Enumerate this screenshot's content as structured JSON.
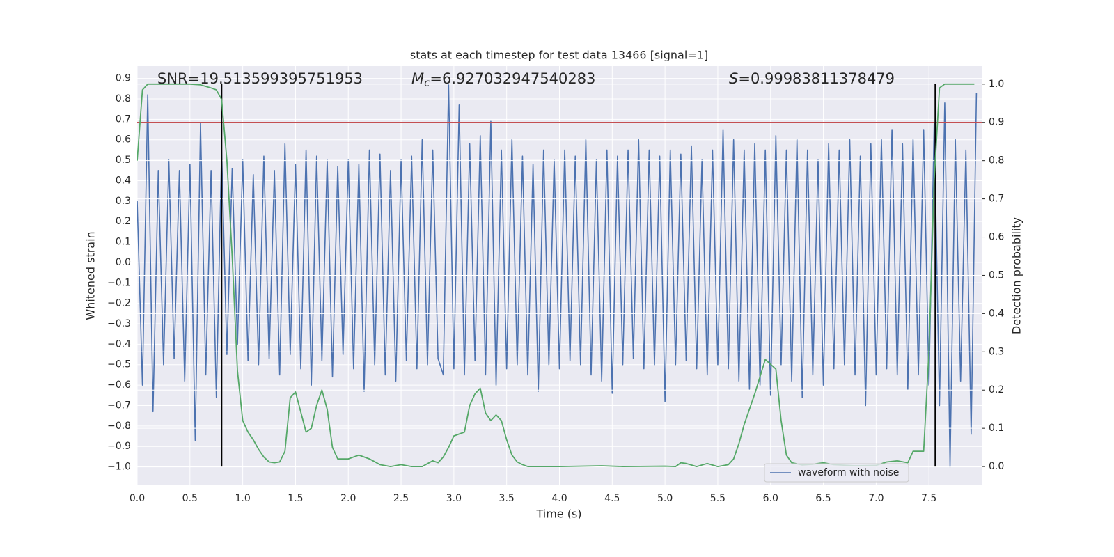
{
  "chart_data": {
    "type": "line",
    "title": "stats at each timestep for test data 13466 [signal=1]",
    "x_label": "Time (s)",
    "y_label": "Whitened strain",
    "y2_label": "Detection probability",
    "xlim": [
      0,
      8
    ],
    "ylim": [
      -1.09,
      0.96
    ],
    "y2lim": [
      -0.049,
      1.047
    ],
    "xticks": [
      {
        "value": 0,
        "label": "0.0"
      },
      0.5,
      {
        "value": 1,
        "label": "1.0"
      },
      1.5,
      {
        "value": 2,
        "label": "2.0"
      },
      2.5,
      {
        "value": 3,
        "label": "3.0"
      },
      3.5,
      {
        "value": 4,
        "label": "4.0"
      },
      4.5,
      {
        "value": 5,
        "label": "5.0"
      },
      5.5,
      {
        "value": 6,
        "label": "6.0"
      },
      6.5,
      {
        "value": 7,
        "label": "7.0"
      },
      7.5
    ],
    "yticks": [
      {
        "value": -1,
        "label": "−1.0"
      },
      {
        "value": -0.9,
        "label": "−0.9"
      },
      {
        "value": -0.8,
        "label": "−0.8"
      },
      {
        "value": -0.7,
        "label": "−0.7"
      },
      {
        "value": -0.6,
        "label": "−0.6"
      },
      {
        "value": -0.5,
        "label": "−0.5"
      },
      {
        "value": -0.4,
        "label": "−0.4"
      },
      {
        "value": -0.3,
        "label": "−0.3"
      },
      {
        "value": -0.2,
        "label": "−0.2"
      },
      {
        "value": -0.1,
        "label": "−0.1"
      },
      {
        "value": 0,
        "label": "0.0"
      },
      0.1,
      0.2,
      0.3,
      0.4,
      0.5,
      0.6,
      0.7,
      0.8,
      0.9
    ],
    "y2ticks": [
      {
        "value": 0,
        "label": "0.0"
      },
      0.1,
      0.2,
      0.3,
      0.4,
      0.5,
      0.6,
      0.7,
      0.8,
      0.9,
      {
        "value": 1,
        "label": "1.0"
      }
    ],
    "grid": true,
    "legend": "lower right",
    "series": [
      {
        "name": "waveform with noise",
        "color": "#4c72b0",
        "x": [
          0,
          0.05,
          0.1,
          0.15,
          0.2,
          0.25,
          0.3,
          0.35,
          0.4,
          0.45,
          0.5,
          0.55,
          0.6,
          0.65,
          0.7,
          0.75,
          0.8,
          0.85,
          0.9,
          0.95,
          1,
          1.05,
          1.1,
          1.15,
          1.2,
          1.25,
          1.3,
          1.35,
          1.4,
          1.45,
          1.5,
          1.55,
          1.6,
          1.65,
          1.7,
          1.75,
          1.8,
          1.85,
          1.9,
          1.95,
          2,
          2.05,
          2.1,
          2.15,
          2.2,
          2.25,
          2.3,
          2.35,
          2.4,
          2.45,
          2.5,
          2.55,
          2.6,
          2.65,
          2.7,
          2.75,
          2.8,
          2.85,
          2.9,
          2.95,
          3,
          3.05,
          3.1,
          3.15,
          3.2,
          3.25,
          3.3,
          3.35,
          3.4,
          3.45,
          3.5,
          3.55,
          3.6,
          3.65,
          3.7,
          3.75,
          3.8,
          3.85,
          3.9,
          3.95,
          4,
          4.05,
          4.1,
          4.15,
          4.2,
          4.25,
          4.3,
          4.35,
          4.4,
          4.45,
          4.5,
          4.55,
          4.6,
          4.65,
          4.7,
          4.75,
          4.8,
          4.85,
          4.9,
          4.95,
          5,
          5.05,
          5.1,
          5.15,
          5.2,
          5.25,
          5.3,
          5.35,
          5.4,
          5.45,
          5.5,
          5.55,
          5.6,
          5.65,
          5.7,
          5.75,
          5.8,
          5.85,
          5.9,
          5.95,
          6,
          6.05,
          6.1,
          6.15,
          6.2,
          6.25,
          6.3,
          6.35,
          6.4,
          6.45,
          6.5,
          6.55,
          6.6,
          6.65,
          6.7,
          6.75,
          6.8,
          6.85,
          6.9,
          6.95,
          7,
          7.05,
          7.1,
          7.15,
          7.2,
          7.25,
          7.3,
          7.35,
          7.4,
          7.45,
          7.5,
          7.55,
          7.6,
          7.65,
          7.7,
          7.75,
          7.8,
          7.85,
          7.9,
          7.95
        ],
        "values": [
          0.3,
          -0.6,
          0.82,
          -0.73,
          0.45,
          -0.5,
          0.5,
          -0.47,
          0.45,
          -0.58,
          0.48,
          -0.87,
          0.68,
          -0.55,
          0.45,
          -0.66,
          0.55,
          -0.45,
          0.46,
          -0.4,
          0.5,
          -0.48,
          0.43,
          -0.5,
          0.52,
          -0.47,
          0.45,
          -0.55,
          0.58,
          -0.45,
          0.48,
          -0.52,
          0.55,
          -0.6,
          0.52,
          -0.48,
          0.5,
          -0.56,
          0.47,
          -0.45,
          0.5,
          -0.52,
          0.48,
          -0.63,
          0.55,
          -0.5,
          0.53,
          -0.55,
          0.45,
          -0.58,
          0.5,
          -0.48,
          0.52,
          -0.52,
          0.6,
          -0.5,
          0.55,
          -0.47,
          -0.55,
          0.87,
          -0.52,
          0.77,
          -0.55,
          0.58,
          -0.48,
          0.62,
          -0.55,
          0.69,
          -0.6,
          0.55,
          -0.52,
          0.6,
          -0.5,
          0.52,
          -0.55,
          0.48,
          -0.63,
          0.55,
          -0.5,
          0.5,
          -0.52,
          0.55,
          -0.48,
          0.52,
          -0.5,
          0.6,
          -0.55,
          0.5,
          -0.58,
          0.55,
          -0.64,
          0.52,
          -0.5,
          0.55,
          -0.47,
          0.6,
          -0.52,
          0.55,
          -0.5,
          0.52,
          -0.68,
          0.55,
          -0.5,
          0.53,
          -0.48,
          0.57,
          -0.52,
          0.5,
          -0.55,
          0.55,
          -0.5,
          0.65,
          -0.52,
          0.6,
          -0.58,
          0.55,
          -0.62,
          0.58,
          -0.6,
          0.55,
          -0.65,
          0.62,
          -0.5,
          0.55,
          -0.58,
          0.6,
          -0.66,
          0.55,
          -0.55,
          0.5,
          -0.6,
          0.58,
          -0.52,
          0.55,
          -0.5,
          0.6,
          -0.55,
          0.52,
          -0.7,
          0.58,
          -0.55,
          0.6,
          -0.52,
          0.65,
          -0.55,
          0.58,
          -0.62,
          0.6,
          -0.55,
          0.65,
          -0.6,
          0.68,
          -0.7,
          0.78,
          -1,
          0.6,
          -0.58,
          0.55,
          -0.84,
          0.83
        ]
      },
      {
        "color": "#55a868",
        "axis": "y2",
        "x": [
          0,
          0.05,
          0.1,
          0.3,
          0.5,
          0.6,
          0.7,
          0.75,
          0.8,
          0.85,
          0.9,
          0.95,
          1,
          1.05,
          1.1,
          1.15,
          1.2,
          1.25,
          1.3,
          1.35,
          1.4,
          1.45,
          1.5,
          1.6,
          1.65,
          1.7,
          1.75,
          1.8,
          1.85,
          1.9,
          2,
          2.1,
          2.2,
          2.3,
          2.4,
          2.5,
          2.6,
          2.7,
          2.8,
          2.85,
          2.9,
          2.95,
          3,
          3.1,
          3.15,
          3.2,
          3.25,
          3.3,
          3.35,
          3.4,
          3.45,
          3.5,
          3.55,
          3.6,
          3.65,
          3.7,
          4,
          4.4,
          4.6,
          5,
          5.1,
          5.15,
          5.2,
          5.3,
          5.4,
          5.5,
          5.6,
          5.65,
          5.7,
          5.75,
          5.8,
          5.85,
          5.95,
          6.05,
          6.1,
          6.15,
          6.2,
          6.3,
          6.4,
          6.5,
          6.6,
          6.8,
          7,
          7.1,
          7.2,
          7.3,
          7.35,
          7.45,
          7.5,
          7.55,
          7.6,
          7.65,
          7.93
        ],
        "values": [
          0.8,
          0.985,
          1,
          1,
          1,
          0.998,
          0.99,
          0.985,
          0.96,
          0.8,
          0.55,
          0.25,
          0.12,
          0.09,
          0.07,
          0.045,
          0.025,
          0.012,
          0.01,
          0.012,
          0.04,
          0.18,
          0.195,
          0.09,
          0.1,
          0.16,
          0.2,
          0.15,
          0.05,
          0.02,
          0.02,
          0.03,
          0.02,
          0.005,
          0,
          0.005,
          0,
          0,
          0.015,
          0.01,
          0.025,
          0.05,
          0.08,
          0.09,
          0.16,
          0.19,
          0.205,
          0.14,
          0.12,
          0.135,
          0.12,
          0.07,
          0.03,
          0.012,
          0.005,
          0,
          0,
          0.002,
          0,
          0.001,
          0,
          0.01,
          0.008,
          0,
          0.008,
          0,
          0.005,
          0.02,
          0.06,
          0.11,
          0.15,
          0.19,
          0.28,
          0.255,
          0.12,
          0.03,
          0.01,
          0.004,
          0.006,
          0.01,
          0.005,
          0.002,
          0.003,
          0.012,
          0.015,
          0.01,
          0.04,
          0.04,
          0.3,
          0.75,
          0.99,
          1,
          1
        ]
      }
    ],
    "hline": {
      "value": 0.9,
      "axis": "y2",
      "color": "#c44e52"
    },
    "vlines": {
      "x": [
        0.8,
        7.56
      ],
      "ymin": 0,
      "ymax": 1,
      "axis": "y2",
      "color": "#000000"
    },
    "annotations": [
      {
        "text": "SNR=19.513599395751953"
      },
      {
        "symbol": "M",
        "subscript": "c",
        "text": "=6.927032947540283"
      },
      {
        "symbol": "S",
        "text": "=0.99983811378479"
      }
    ]
  }
}
